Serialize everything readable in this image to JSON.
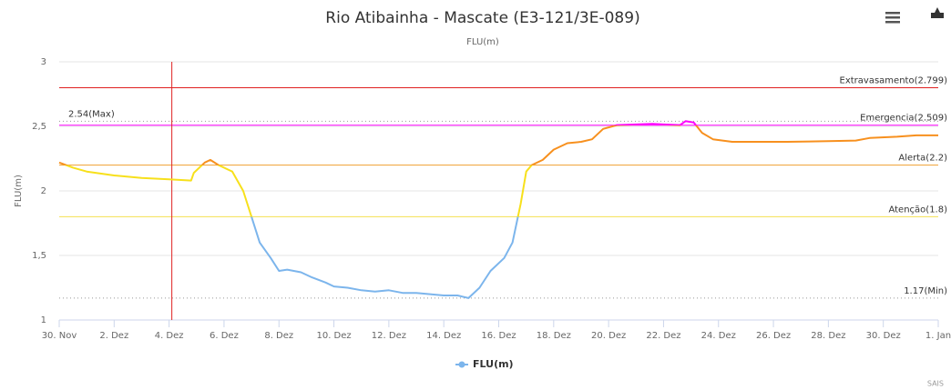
{
  "chart_data": {
    "type": "line",
    "title": "Rio Atibainha - Mascate (E3-121/3E-089)",
    "subtitle": "FLU(m)",
    "y_axis_title": "FLU(m)",
    "credits": "SAIS",
    "xlim": [
      0,
      32
    ],
    "xticks": [
      {
        "value": 0,
        "label": "30. Nov"
      },
      {
        "value": 2,
        "label": "2. Dez"
      },
      {
        "value": 4,
        "label": "4. Dez"
      },
      {
        "value": 6,
        "label": "6. Dez"
      },
      {
        "value": 8,
        "label": "8. Dez"
      },
      {
        "value": 10,
        "label": "10. Dez"
      },
      {
        "value": 12,
        "label": "12. Dez"
      },
      {
        "value": 14,
        "label": "14. Dez"
      },
      {
        "value": 16,
        "label": "16. Dez"
      },
      {
        "value": 18,
        "label": "18. Dez"
      },
      {
        "value": 20,
        "label": "20. Dez"
      },
      {
        "value": 22,
        "label": "22. Dez"
      },
      {
        "value": 24,
        "label": "24. Dez"
      },
      {
        "value": 26,
        "label": "26. Dez"
      },
      {
        "value": 28,
        "label": "28. Dez"
      },
      {
        "value": 30,
        "label": "30. Dez"
      },
      {
        "value": 32,
        "label": "1. Jan"
      }
    ],
    "ylim": [
      1,
      3
    ],
    "yticks": [
      1,
      {
        "value": 1.5,
        "label": "1,5"
      },
      2,
      {
        "value": 2.5,
        "label": "2,5"
      },
      3
    ],
    "grid": true,
    "x": [
      0,
      0.5,
      1,
      2,
      3,
      4,
      4.8,
      4.9,
      5.3,
      5.5,
      5.8,
      6.3,
      6.7,
      7,
      7.3,
      7.7,
      8,
      8.3,
      8.8,
      9.2,
      9.7,
      10,
      10.5,
      11,
      11.5,
      12,
      12.5,
      13,
      13.5,
      14,
      14.5,
      14.9,
      15.3,
      15.7,
      16.2,
      16.5,
      16.8,
      17,
      17.2,
      17.6,
      18,
      18.5,
      19,
      19.4,
      19.8,
      20.3,
      21,
      21.6,
      22,
      22.6,
      22.8,
      23.1,
      23.4,
      23.8,
      24.5,
      25.5,
      26.5,
      28,
      29,
      29.5,
      30.5,
      31.2,
      32
    ],
    "series": [
      {
        "name": "FLU(m)",
        "color": "#7cb5ec",
        "values": [
          2.22,
          2.18,
          2.15,
          2.12,
          2.1,
          2.09,
          2.08,
          2.14,
          2.22,
          2.24,
          2.2,
          2.15,
          2.0,
          1.8,
          1.6,
          1.48,
          1.38,
          1.39,
          1.37,
          1.33,
          1.29,
          1.26,
          1.25,
          1.23,
          1.22,
          1.23,
          1.21,
          1.21,
          1.2,
          1.19,
          1.19,
          1.17,
          1.25,
          1.38,
          1.48,
          1.6,
          1.9,
          2.15,
          2.2,
          2.24,
          2.32,
          2.37,
          2.38,
          2.4,
          2.48,
          2.51,
          2.515,
          2.52,
          2.515,
          2.51,
          2.54,
          2.53,
          2.45,
          2.4,
          2.38,
          2.38,
          2.38,
          2.385,
          2.39,
          2.41,
          2.42,
          2.43,
          2.43
        ]
      }
    ],
    "zones": [
      {
        "value": 1.8,
        "color": "#7cb5ec"
      },
      {
        "value": 2.2,
        "color": "#f7e01b"
      },
      {
        "value": 2.509,
        "color": "#f7901e"
      },
      {
        "color": "#ff00ff"
      }
    ],
    "plot_lines": [
      {
        "value": 2.799,
        "label": "Extravasamento(2.799)",
        "color": "#e02020",
        "align": "right"
      },
      {
        "value": 2.54,
        "label": "2.54(Max)",
        "color": "#999999",
        "dash": true,
        "align": "left"
      },
      {
        "value": 2.509,
        "label": "Emergencia(2.509)",
        "color": "#ff00ff",
        "align": "right"
      },
      {
        "value": 2.2,
        "label": "Alerta(2.2)",
        "color": "#f0a030",
        "align": "right"
      },
      {
        "value": 1.8,
        "label": "Atenção(1.8)",
        "color": "#f5e050",
        "align": "right"
      },
      {
        "value": 1.17,
        "label": "1.17(Min)",
        "color": "#999999",
        "dash": true,
        "align": "right"
      }
    ],
    "x_plot_lines": [
      {
        "value": 4.1,
        "color": "#e02020"
      }
    ]
  }
}
